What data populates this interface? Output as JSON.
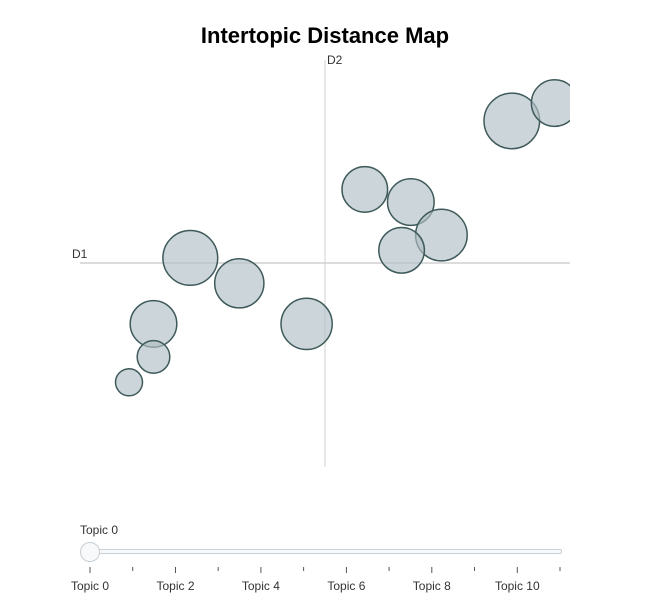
{
  "chart_data": {
    "type": "scatter",
    "title": "Intertopic Distance Map",
    "xlabel": "D1",
    "ylabel": "D2",
    "xlim": [
      -8,
      8
    ],
    "ylim": [
      -8,
      8
    ],
    "grid": false,
    "points": [
      {
        "x": -4.4,
        "y": 0.2,
        "size": 0.062
      },
      {
        "x": -2.8,
        "y": -0.8,
        "size": 0.05
      },
      {
        "x": -5.6,
        "y": -2.4,
        "size": 0.045
      },
      {
        "x": -5.6,
        "y": -3.7,
        "size": 0.022
      },
      {
        "x": -6.4,
        "y": -4.7,
        "size": 0.015
      },
      {
        "x": -0.6,
        "y": -2.4,
        "size": 0.054
      },
      {
        "x": 1.3,
        "y": 2.9,
        "size": 0.043
      },
      {
        "x": 2.8,
        "y": 2.4,
        "size": 0.045
      },
      {
        "x": 3.8,
        "y": 1.1,
        "size": 0.055
      },
      {
        "x": 2.5,
        "y": 0.5,
        "size": 0.043
      },
      {
        "x": 6.1,
        "y": 5.6,
        "size": 0.064
      },
      {
        "x": 7.5,
        "y": 6.3,
        "size": 0.045
      }
    ]
  },
  "slider": {
    "current_label": "Topic 0",
    "value": 0,
    "min": 0,
    "max": 11,
    "tick_labels": [
      "Topic 0",
      "Topic 2",
      "Topic 4",
      "Topic 6",
      "Topic 8",
      "Topic 10"
    ]
  },
  "colors": {
    "bubble_fill": "#b0bec5",
    "bubble_stroke": "#3f5a5a",
    "axis_line": "#d0d0d0"
  }
}
